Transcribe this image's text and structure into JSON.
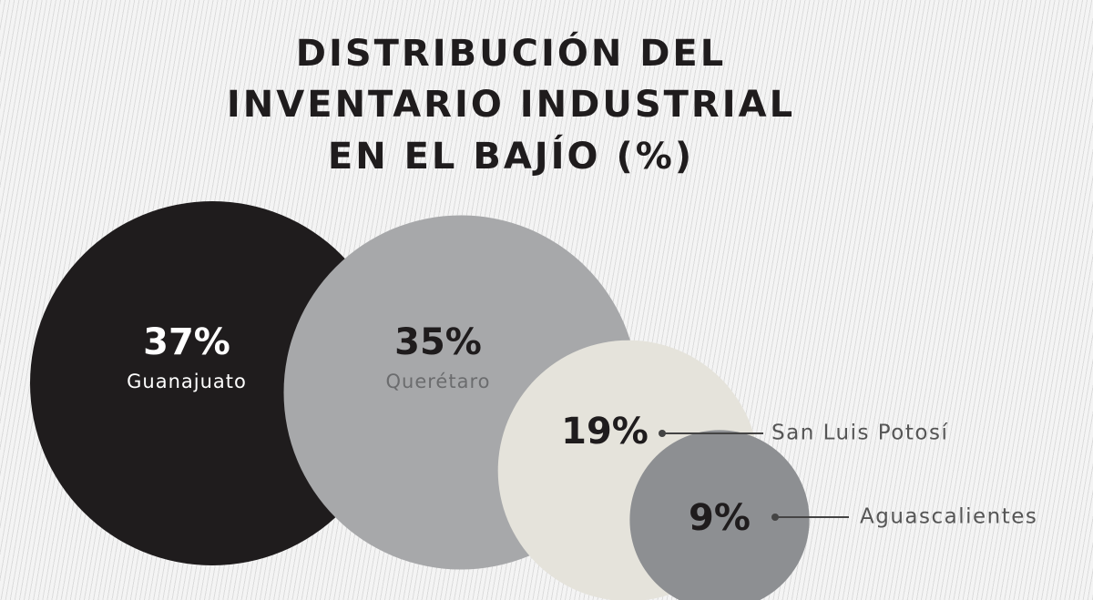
{
  "chart_data": {
    "type": "bubble",
    "title_lines": [
      "DISTRIBUCIÓN DEL",
      "INVENTARIO INDUSTRIAL",
      "EN EL BAJÍO (%)"
    ],
    "categories": [
      "Guanajuato",
      "Querétaro",
      "San Luis Potosí",
      "Aguascalientes"
    ],
    "values": [
      37,
      35,
      19,
      9
    ],
    "value_labels": [
      "37%",
      "35%",
      "19%",
      "9%"
    ],
    "colors": [
      "#1f1c1d",
      "#a7a8aa",
      "#e5e3db",
      "#8d8f92"
    ],
    "label_placement": [
      "inside",
      "inside",
      "callout-right",
      "callout-right"
    ],
    "label_colors": {
      "value": [
        "#ffffff",
        "#1f1c1d",
        "#1f1c1d",
        "#1f1c1d"
      ],
      "name": [
        "#ffffff",
        "#6b6c6e",
        "#555555",
        "#555555"
      ]
    }
  }
}
